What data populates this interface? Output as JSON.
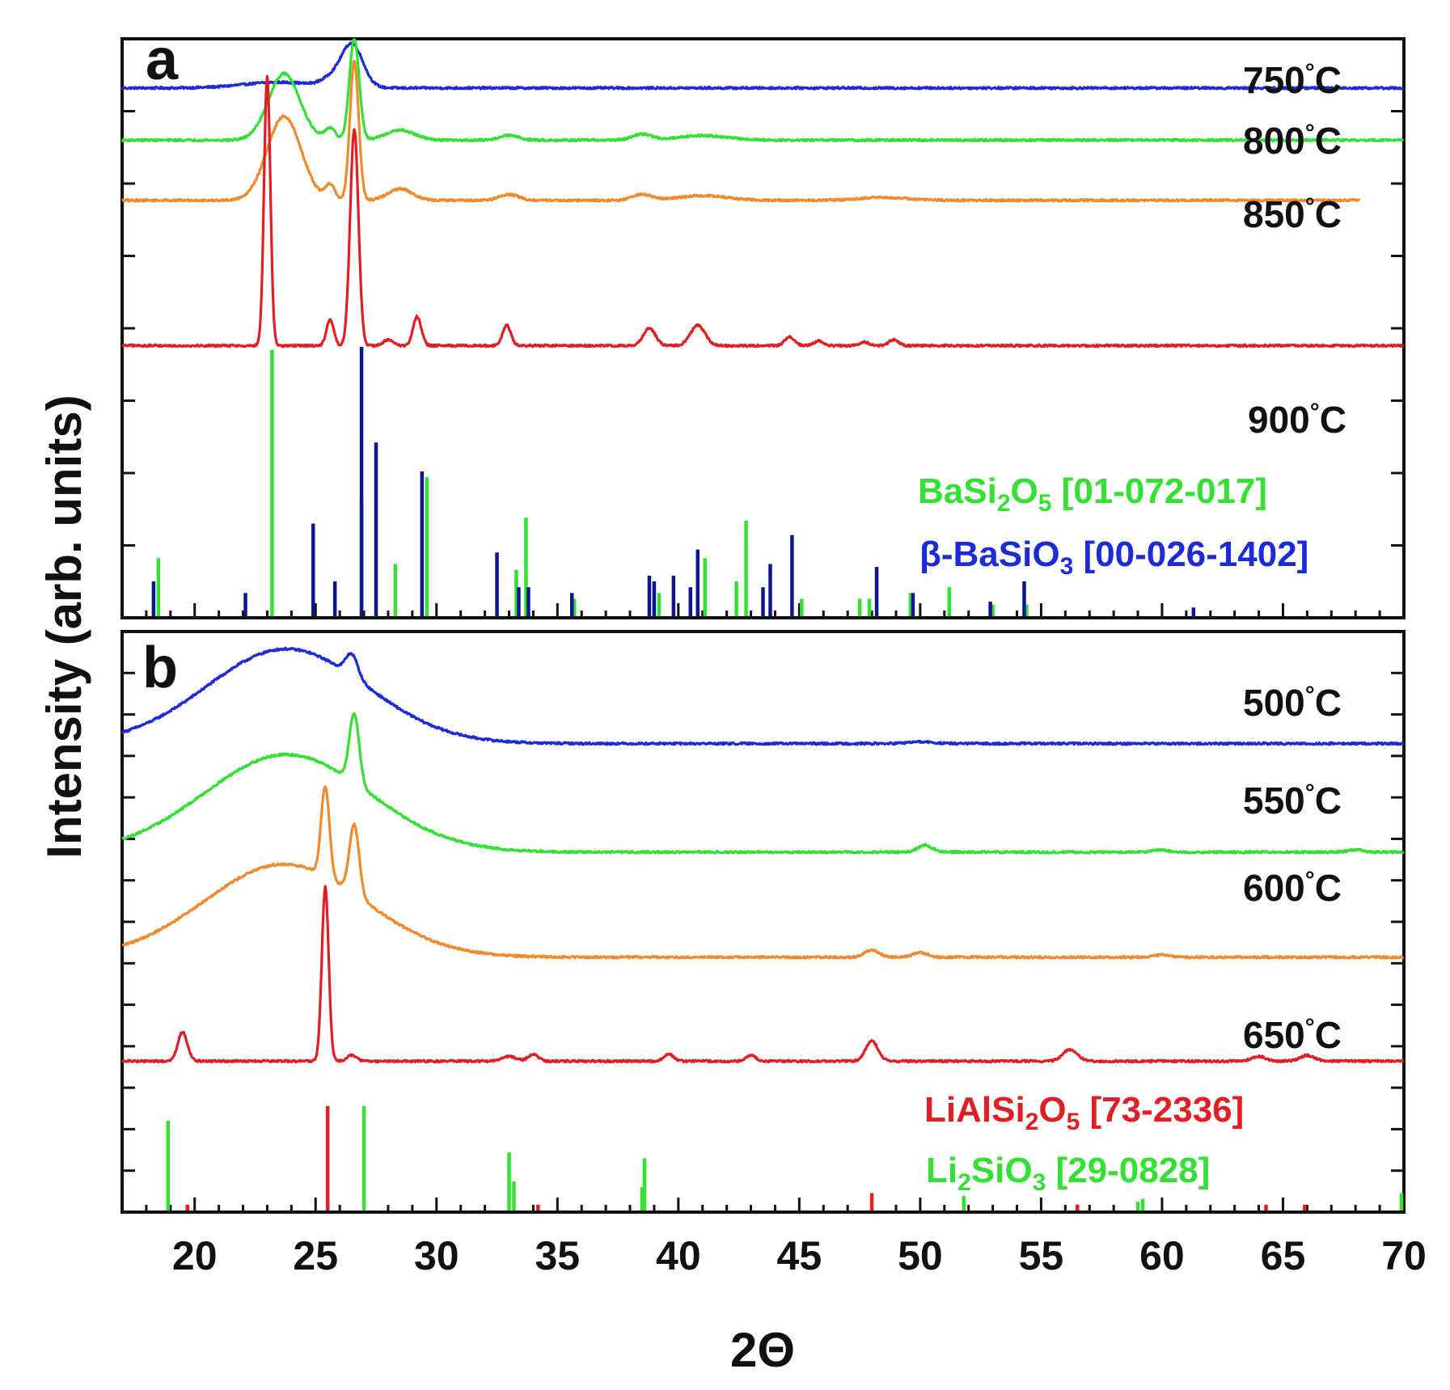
{
  "figure": {
    "xlabel": "2Θ",
    "ylabel": "Intensity (arb. units)"
  },
  "colors": {
    "blue": "#1c2bd6",
    "green": "#34e034",
    "orange": "#f08a2c",
    "red": "#e01e24",
    "navy": "#0d1590",
    "axis": "#111111"
  },
  "chart_data": [
    {
      "panel": "a",
      "type": "line",
      "xlim": [
        17,
        70
      ],
      "xticks": [
        20,
        25,
        30,
        35,
        40,
        45,
        50,
        55,
        60,
        65,
        70
      ],
      "series": [
        {
          "name": "750°C",
          "label_parts": [
            "750",
            "°",
            "C"
          ],
          "color": "blue",
          "baseline": 0.915,
          "xmax": 70,
          "peaks": [
            [
              25.6,
              0.012,
              0.4
            ],
            [
              26.5,
              0.075,
              0.45
            ],
            [
              23.5,
              0.01,
              1.5
            ]
          ]
        },
        {
          "name": "800°C",
          "label_parts": [
            "800",
            "°",
            "C"
          ],
          "color": "green",
          "baseline": 0.825,
          "xmax": 70,
          "peaks": [
            [
              23.7,
              0.115,
              0.65
            ],
            [
              25.6,
              0.02,
              0.22
            ],
            [
              26.6,
              0.175,
              0.2
            ],
            [
              28.5,
              0.017,
              0.6
            ],
            [
              33.0,
              0.008,
              0.4
            ],
            [
              38.5,
              0.01,
              0.4
            ],
            [
              41.0,
              0.008,
              1.0
            ]
          ]
        },
        {
          "name": "850°C",
          "label_parts": [
            "850",
            "°",
            "C"
          ],
          "color": "orange",
          "baseline": 0.721,
          "xmax": 68.2,
          "peaks": [
            [
              23.7,
              0.145,
              0.7
            ],
            [
              25.6,
              0.025,
              0.2
            ],
            [
              26.6,
              0.24,
              0.18
            ],
            [
              28.5,
              0.02,
              0.5
            ],
            [
              33.0,
              0.01,
              0.4
            ],
            [
              38.5,
              0.01,
              0.4
            ],
            [
              41.0,
              0.008,
              1.0
            ],
            [
              48.5,
              0.005,
              1.0
            ]
          ]
        },
        {
          "name": "900°C",
          "label_parts": [
            "900",
            "°",
            "C"
          ],
          "color": "red",
          "baseline": 0.47,
          "xmax": 70,
          "peaks": [
            [
              23.0,
              0.465,
              0.13
            ],
            [
              25.6,
              0.045,
              0.15
            ],
            [
              26.6,
              0.375,
              0.17
            ],
            [
              28.0,
              0.01,
              0.2
            ],
            [
              29.2,
              0.05,
              0.17
            ],
            [
              32.9,
              0.035,
              0.17
            ],
            [
              38.8,
              0.03,
              0.25
            ],
            [
              40.8,
              0.035,
              0.3
            ],
            [
              44.6,
              0.015,
              0.2
            ],
            [
              45.8,
              0.008,
              0.2
            ],
            [
              47.7,
              0.006,
              0.2
            ],
            [
              48.9,
              0.01,
              0.2
            ]
          ]
        }
      ],
      "references": [
        {
          "name": "BaSi2O5 [01-072-017]",
          "label_parts": [
            "BaSi",
            "2",
            "O",
            "5",
            " [01-072-017]"
          ],
          "color": "green",
          "sticks": [
            [
              18.5,
              0.1
            ],
            [
              23.2,
              0.46
            ],
            [
              26.9,
              0.2
            ],
            [
              28.3,
              0.09
            ],
            [
              29.6,
              0.24
            ],
            [
              33.3,
              0.08
            ],
            [
              33.7,
              0.17
            ],
            [
              35.7,
              0.03
            ],
            [
              39.2,
              0.04
            ],
            [
              41.1,
              0.1
            ],
            [
              42.4,
              0.06
            ],
            [
              42.8,
              0.165
            ],
            [
              45.1,
              0.03
            ],
            [
              47.5,
              0.03
            ],
            [
              47.9,
              0.03
            ],
            [
              49.6,
              0.04
            ],
            [
              51.2,
              0.05
            ],
            [
              53.0,
              0.02
            ],
            [
              54.4,
              0.02
            ]
          ]
        },
        {
          "name": "β-BaSiO3 [00-026-1402]",
          "label_parts": [
            "β-BaSiO",
            "3",
            " [00-026-1402]"
          ],
          "color": "navy",
          "sticks": [
            [
              18.3,
              0.06
            ],
            [
              22.1,
              0.04
            ],
            [
              24.9,
              0.16
            ],
            [
              25.8,
              0.06
            ],
            [
              26.9,
              0.465
            ],
            [
              27.5,
              0.3
            ],
            [
              29.4,
              0.25
            ],
            [
              32.5,
              0.11
            ],
            [
              33.4,
              0.05
            ],
            [
              33.8,
              0.05
            ],
            [
              35.6,
              0.04
            ],
            [
              38.8,
              0.07
            ],
            [
              39.0,
              0.06
            ],
            [
              39.8,
              0.07
            ],
            [
              40.5,
              0.05
            ],
            [
              40.8,
              0.115
            ],
            [
              43.5,
              0.05
            ],
            [
              43.8,
              0.09
            ],
            [
              44.7,
              0.14
            ],
            [
              48.2,
              0.085
            ],
            [
              49.7,
              0.04
            ],
            [
              52.9,
              0.025
            ],
            [
              54.3,
              0.06
            ],
            [
              61.3,
              0.015
            ]
          ]
        }
      ]
    },
    {
      "panel": "b",
      "type": "line",
      "xlim": [
        17,
        70
      ],
      "xticks": [
        20,
        25,
        30,
        35,
        40,
        45,
        50,
        55,
        60,
        65,
        70
      ],
      "series": [
        {
          "name": "500°C",
          "label_parts": [
            "500",
            "°",
            "C"
          ],
          "color": "blue",
          "baseline": 0.807,
          "xmax": 70,
          "peaks": [
            [
              23.8,
              0.163,
              3.3
            ],
            [
              26.5,
              0.038,
              0.25
            ],
            [
              50.0,
              0.003,
              0.5
            ]
          ]
        },
        {
          "name": "550°C",
          "label_parts": [
            "550",
            "°",
            "C"
          ],
          "color": "green",
          "baseline": 0.62,
          "xmax": 70,
          "peaks": [
            [
              23.8,
              0.168,
              3.4
            ],
            [
              26.6,
              0.12,
              0.2
            ],
            [
              50.2,
              0.012,
              0.3
            ],
            [
              59.9,
              0.004,
              0.3
            ],
            [
              68.0,
              0.004,
              0.3
            ]
          ]
        },
        {
          "name": "600°C",
          "label_parts": [
            "600",
            "°",
            "C"
          ],
          "color": "orange",
          "baseline": 0.439,
          "xmax": 70,
          "peaks": [
            [
              23.7,
              0.16,
              3.3
            ],
            [
              25.4,
              0.155,
              0.17
            ],
            [
              26.6,
              0.12,
              0.2
            ],
            [
              48.0,
              0.012,
              0.3
            ],
            [
              50.0,
              0.008,
              0.3
            ],
            [
              60.0,
              0.004,
              0.3
            ]
          ]
        },
        {
          "name": "650°C",
          "label_parts": [
            "650",
            "°",
            "C"
          ],
          "color": "red",
          "baseline": 0.26,
          "xmax": 70,
          "peaks": [
            [
              19.5,
              0.05,
              0.2
            ],
            [
              25.4,
              0.3,
              0.14
            ],
            [
              26.5,
              0.01,
              0.2
            ],
            [
              33.0,
              0.008,
              0.3
            ],
            [
              34.0,
              0.012,
              0.2
            ],
            [
              39.6,
              0.012,
              0.2
            ],
            [
              43.0,
              0.01,
              0.2
            ],
            [
              48.0,
              0.035,
              0.25
            ],
            [
              56.2,
              0.02,
              0.3
            ],
            [
              64.0,
              0.008,
              0.3
            ],
            [
              66.0,
              0.01,
              0.3
            ]
          ]
        }
      ],
      "references": [
        {
          "name": "LiAlSi2O5 [73-2336]",
          "label_parts": [
            "LiAlSi",
            "2",
            "O",
            "5",
            " [73-2336]"
          ],
          "color": "red",
          "sticks": [
            [
              19.7,
              0.01
            ],
            [
              25.5,
              0.18
            ],
            [
              34.2,
              0.01
            ],
            [
              48.0,
              0.03
            ],
            [
              56.5,
              0.01
            ],
            [
              64.3,
              0.01
            ],
            [
              65.9,
              0.01
            ]
          ]
        },
        {
          "name": "Li2SiO3 [29-0828]",
          "label_parts": [
            "Li",
            "2",
            "SiO",
            "3",
            " [29-0828]"
          ],
          "color": "green",
          "sticks": [
            [
              18.9,
              0.155
            ],
            [
              27.0,
              0.18
            ],
            [
              33.0,
              0.1
            ],
            [
              33.2,
              0.05
            ],
            [
              38.5,
              0.04
            ],
            [
              38.6,
              0.09
            ],
            [
              51.8,
              0.025
            ],
            [
              59.0,
              0.015
            ],
            [
              59.2,
              0.02
            ],
            [
              69.9,
              0.03
            ]
          ]
        }
      ]
    }
  ]
}
